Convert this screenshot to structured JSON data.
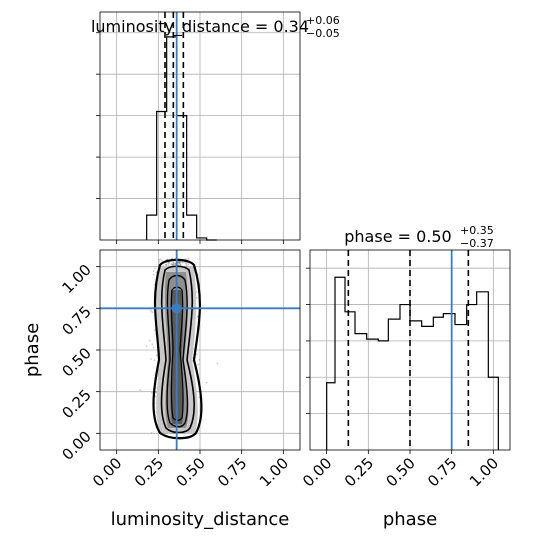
{
  "chart_data": [
    {
      "type": "histogram",
      "panel": "luminosity_distance-marginal",
      "title_param": "luminosity_distance",
      "title_value": "0.34",
      "title_plus": "+0.06",
      "title_minus": "−0.05",
      "xlim": [
        -0.1,
        1.1
      ],
      "bin_edges": [
        0.18,
        0.24,
        0.3,
        0.36,
        0.42,
        0.48,
        0.54,
        0.6
      ],
      "counts": [
        0.12,
        0.62,
        0.98,
        0.6,
        0.12,
        0.01,
        0.0
      ],
      "ylim": [
        0,
        1.1
      ],
      "quantiles": [
        0.29,
        0.34,
        0.4
      ],
      "truth": 0.36,
      "grid": true
    },
    {
      "type": "histogram",
      "panel": "phase-marginal",
      "title_param": "phase",
      "title_value": "0.50",
      "title_plus": "+0.35",
      "title_minus": "−0.37",
      "xlim": [
        -0.1,
        1.1
      ],
      "bin_edges": [
        0.0,
        0.05,
        0.11,
        0.17,
        0.24,
        0.31,
        0.37,
        0.44,
        0.5,
        0.57,
        0.64,
        0.7,
        0.77,
        0.84,
        0.9,
        0.97,
        1.03
      ],
      "counts": [
        0.37,
        0.95,
        0.76,
        0.64,
        0.61,
        0.6,
        0.72,
        0.8,
        0.71,
        0.68,
        0.73,
        0.75,
        0.69,
        0.8,
        0.87,
        0.4
      ],
      "ylim": [
        0,
        1.1
      ],
      "quantiles": [
        0.13,
        0.5,
        0.85
      ],
      "truth": 0.75,
      "grid": true
    },
    {
      "type": "scatter",
      "panel": "joint-density",
      "xlabel": "luminosity_distance",
      "ylabel": "phase",
      "xlim": [
        -0.1,
        1.1
      ],
      "ylim": [
        -0.1,
        1.1
      ],
      "x_ticks": [
        "0.00",
        "0.25",
        "0.50",
        "0.75",
        "1.00"
      ],
      "x_tick_values": [
        0.0,
        0.25,
        0.5,
        0.75,
        1.0
      ],
      "y_ticks": [
        "0.00",
        "0.25",
        "0.50",
        "0.75",
        "1.00"
      ],
      "y_tick_values": [
        0.0,
        0.25,
        0.5,
        0.75,
        1.0
      ],
      "phase_x_ticks": [
        "0.00",
        "0.25",
        "0.50",
        "0.75",
        "1.00"
      ],
      "phase_x_tick_values": [
        0.0,
        0.25,
        0.5,
        0.75,
        1.0
      ],
      "truth_x": 0.36,
      "truth_y": 0.75,
      "point_center_x": 0.345,
      "point_spread_x": 0.05,
      "point_y_range": [
        0.0,
        1.05
      ],
      "point_count": 1600,
      "grid": true
    }
  ]
}
